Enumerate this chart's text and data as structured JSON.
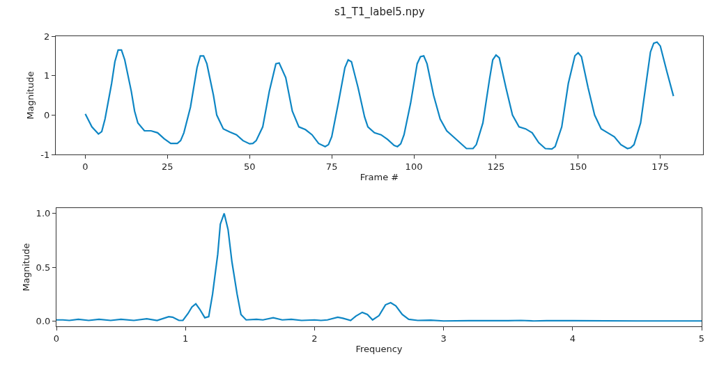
{
  "chart_data": [
    {
      "type": "line",
      "title": "s1_T1_label5.npy",
      "xlabel": "Frame #",
      "ylabel": "Magnitude",
      "xlim": [
        -9,
        188
      ],
      "ylim": [
        -1,
        2
      ],
      "xticks": [
        0,
        25,
        50,
        75,
        100,
        125,
        150,
        175
      ],
      "yticks": [
        -1,
        0,
        1,
        2
      ],
      "x": [
        0,
        2,
        4,
        5,
        6,
        8,
        9,
        10,
        11,
        12,
        14,
        15,
        16,
        18,
        20,
        22,
        24,
        26,
        28,
        29,
        30,
        32,
        34,
        35,
        36,
        37,
        39,
        40,
        42,
        44,
        46,
        48,
        50,
        51,
        52,
        54,
        56,
        58,
        59,
        61,
        63,
        65,
        67,
        69,
        71,
        73,
        74,
        75,
        77,
        79,
        80,
        81,
        83,
        85,
        86,
        88,
        90,
        92,
        94,
        95,
        96,
        97,
        99,
        101,
        102,
        103,
        104,
        106,
        108,
        110,
        112,
        114,
        116,
        118,
        119,
        121,
        123,
        124,
        125,
        126,
        128,
        130,
        132,
        134,
        136,
        138,
        140,
        142,
        143,
        145,
        147,
        149,
        150,
        151,
        153,
        155,
        157,
        159,
        161,
        163,
        165,
        166,
        167,
        169,
        171,
        172,
        173,
        174,
        175,
        177,
        179
      ],
      "series": [
        {
          "color": "#0e86c4",
          "values": [
            0.03,
            -0.3,
            -0.48,
            -0.42,
            -0.1,
            0.8,
            1.35,
            1.65,
            1.65,
            1.4,
            0.6,
            0.1,
            -0.2,
            -0.4,
            -0.4,
            -0.45,
            -0.6,
            -0.72,
            -0.72,
            -0.65,
            -0.45,
            0.2,
            1.2,
            1.5,
            1.5,
            1.3,
            0.5,
            0,
            -0.35,
            -0.43,
            -0.5,
            -0.65,
            -0.73,
            -0.72,
            -0.65,
            -0.3,
            0.6,
            1.3,
            1.32,
            0.95,
            0.1,
            -0.3,
            -0.37,
            -0.5,
            -0.72,
            -0.8,
            -0.75,
            -0.55,
            0.3,
            1.2,
            1.4,
            1.35,
            0.7,
            -0.05,
            -0.3,
            -0.45,
            -0.5,
            -0.62,
            -0.77,
            -0.8,
            -0.73,
            -0.5,
            0.3,
            1.3,
            1.48,
            1.5,
            1.3,
            0.5,
            -0.1,
            -0.4,
            -0.55,
            -0.7,
            -0.85,
            -0.85,
            -0.75,
            -0.2,
            0.9,
            1.4,
            1.52,
            1.45,
            0.7,
            0,
            -0.3,
            -0.35,
            -0.45,
            -0.7,
            -0.85,
            -0.86,
            -0.8,
            -0.3,
            0.8,
            1.5,
            1.58,
            1.48,
            0.7,
            0,
            -0.35,
            -0.45,
            -0.55,
            -0.75,
            -0.85,
            -0.83,
            -0.75,
            -0.2,
            1.0,
            1.6,
            1.82,
            1.85,
            1.75,
            1.1,
            0.48
          ]
        }
      ]
    },
    {
      "type": "line",
      "xlabel": "Frequency",
      "ylabel": "Magnitude",
      "xlim": [
        0,
        5
      ],
      "ylim": [
        -0.05,
        1.05
      ],
      "xticks": [
        0,
        1,
        2,
        3,
        4,
        5
      ],
      "yticks": [
        {
          "value": 0,
          "label": "0.0"
        },
        {
          "value": 0.5,
          "label": "0.5"
        },
        {
          "value": 1,
          "label": "1.0"
        }
      ],
      "x": [
        0,
        0.05,
        0.1,
        0.17,
        0.25,
        0.33,
        0.42,
        0.5,
        0.6,
        0.7,
        0.78,
        0.87,
        0.9,
        0.95,
        0.98,
        1.02,
        1.05,
        1.08,
        1.11,
        1.15,
        1.18,
        1.21,
        1.25,
        1.27,
        1.3,
        1.33,
        1.36,
        1.4,
        1.43,
        1.47,
        1.55,
        1.6,
        1.68,
        1.75,
        1.82,
        1.9,
        2.0,
        2.05,
        2.1,
        2.18,
        2.22,
        2.28,
        2.32,
        2.37,
        2.41,
        2.45,
        2.5,
        2.55,
        2.59,
        2.63,
        2.68,
        2.73,
        2.8,
        2.9,
        3.0,
        3.2,
        3.5,
        3.6,
        3.7,
        3.8,
        4.0,
        4.5,
        5.0
      ],
      "series": [
        {
          "color": "#0e86c4",
          "values": [
            0.01,
            0.01,
            0.005,
            0.015,
            0.005,
            0.015,
            0.005,
            0.015,
            0.005,
            0.02,
            0.005,
            0.04,
            0.035,
            0.005,
            0.005,
            0.07,
            0.13,
            0.16,
            0.11,
            0.03,
            0.04,
            0.25,
            0.62,
            0.9,
            1.0,
            0.85,
            0.55,
            0.25,
            0.06,
            0.01,
            0.015,
            0.01,
            0.03,
            0.01,
            0.015,
            0.005,
            0.01,
            0.005,
            0.01,
            0.035,
            0.025,
            0.005,
            0.045,
            0.08,
            0.06,
            0.01,
            0.05,
            0.15,
            0.17,
            0.14,
            0.06,
            0.015,
            0.005,
            0.008,
            0.0,
            0.002,
            0.002,
            0.005,
            0.0,
            0.002,
            0.002,
            0.0,
            0.0
          ]
        }
      ]
    }
  ]
}
